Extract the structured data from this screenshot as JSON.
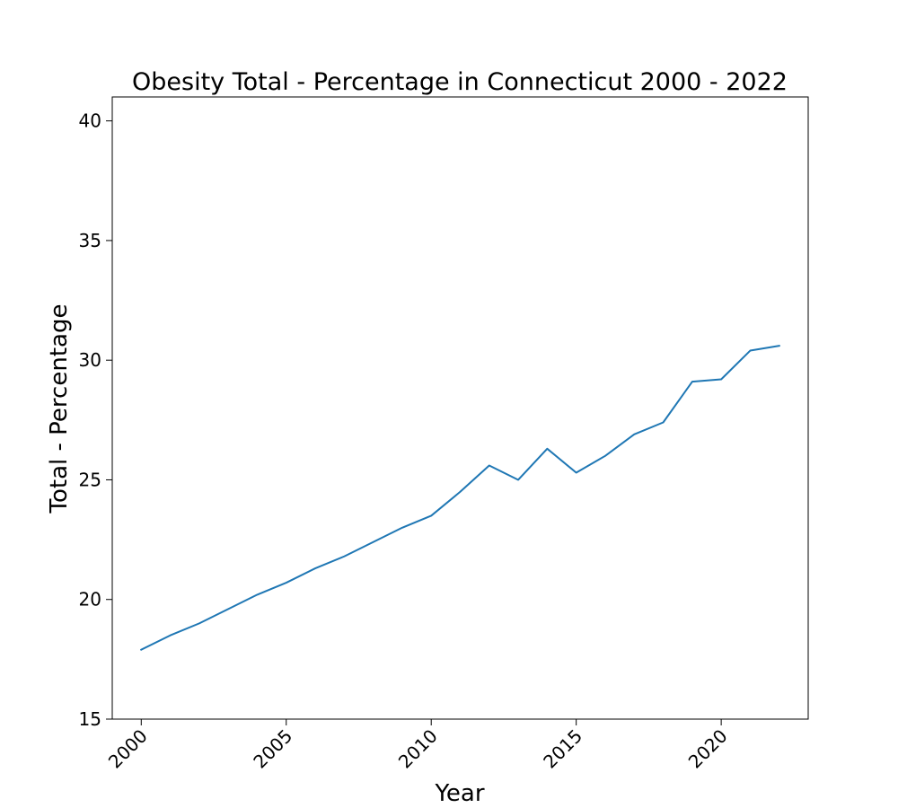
{
  "chart_data": {
    "type": "line",
    "title": "Obesity Total - Percentage in Connecticut 2000 - 2022",
    "xlabel": "Year",
    "ylabel": "Total - Percentage",
    "xlim": [
      1999,
      2023
    ],
    "ylim": [
      15,
      41
    ],
    "x_ticks": [
      2000,
      2005,
      2010,
      2015,
      2020
    ],
    "y_ticks": [
      15,
      20,
      25,
      30,
      35,
      40
    ],
    "grid": false,
    "series": [
      {
        "x": [
          2000,
          2001,
          2002,
          2003,
          2004,
          2005,
          2006,
          2007,
          2008,
          2009,
          2010,
          2011,
          2012,
          2013,
          2014,
          2015,
          2016,
          2017,
          2018,
          2019,
          2020,
          2021,
          2022
        ],
        "values": [
          17.9,
          18.5,
          19.0,
          19.6,
          20.2,
          20.7,
          21.3,
          21.8,
          22.4,
          23.0,
          23.5,
          24.5,
          25.6,
          25.0,
          26.3,
          25.3,
          26.0,
          26.9,
          27.4,
          29.1,
          29.2,
          30.4,
          30.6
        ],
        "color": "#1f77b4"
      }
    ]
  }
}
